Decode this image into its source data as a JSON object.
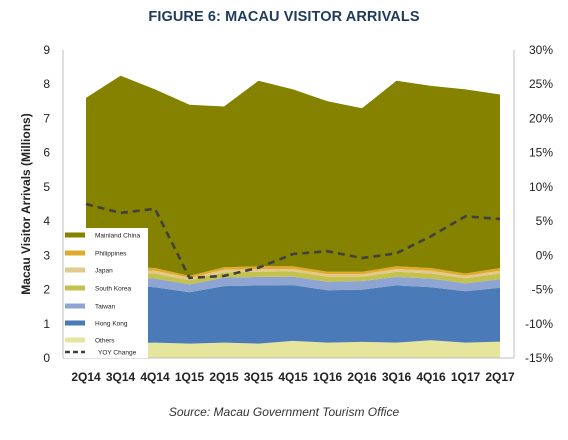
{
  "chart_data": {
    "type": "area",
    "title": "FIGURE 6: MACAU VISITOR ARRIVALS",
    "source": "Source: Macau Government Tourism Office",
    "ylabel": "Macau Visitor Arrivals (Millions)",
    "ylim": [
      0,
      9
    ],
    "yticks": [
      "0",
      "1",
      "2",
      "3",
      "4",
      "5",
      "6",
      "7",
      "8",
      "9"
    ],
    "y2lim": [
      -15,
      30
    ],
    "y2ticks": [
      "-15%",
      "-10%",
      "-5%",
      "0%",
      "5%",
      "10%",
      "15%",
      "20%",
      "25%",
      "30%"
    ],
    "categories": [
      "2Q14",
      "3Q14",
      "4Q14",
      "1Q15",
      "2Q15",
      "3Q15",
      "4Q15",
      "1Q16",
      "2Q16",
      "3Q16",
      "4Q16",
      "1Q17",
      "2Q17"
    ],
    "stacked": true,
    "legend_position": "bottom-left",
    "series": [
      {
        "name": "Others",
        "color": "#e6e59d",
        "values": [
          0.5,
          0.42,
          0.45,
          0.42,
          0.45,
          0.42,
          0.5,
          0.45,
          0.47,
          0.45,
          0.52,
          0.45,
          0.48
        ]
      },
      {
        "name": "Hong Kong",
        "color": "#4a7ab8",
        "values": [
          1.6,
          1.7,
          1.62,
          1.5,
          1.65,
          1.7,
          1.63,
          1.53,
          1.53,
          1.67,
          1.55,
          1.5,
          1.57
        ]
      },
      {
        "name": "Taiwan",
        "color": "#8ea4d2",
        "values": [
          0.25,
          0.25,
          0.25,
          0.23,
          0.25,
          0.25,
          0.25,
          0.25,
          0.25,
          0.25,
          0.25,
          0.23,
          0.25
        ]
      },
      {
        "name": "South Korea",
        "color": "#c4c24d",
        "values": [
          0.15,
          0.15,
          0.15,
          0.12,
          0.15,
          0.15,
          0.15,
          0.15,
          0.13,
          0.15,
          0.15,
          0.15,
          0.17
        ]
      },
      {
        "name": "Japan",
        "color": "#e2c98d",
        "values": [
          0.08,
          0.08,
          0.08,
          0.07,
          0.08,
          0.08,
          0.07,
          0.07,
          0.07,
          0.08,
          0.08,
          0.07,
          0.08
        ]
      },
      {
        "name": "Philippines",
        "color": "#e0aa2c",
        "values": [
          0.07,
          0.07,
          0.08,
          0.06,
          0.07,
          0.08,
          0.08,
          0.07,
          0.07,
          0.08,
          0.08,
          0.07,
          0.08
        ]
      },
      {
        "name": "Mainland China",
        "color": "#858200",
        "values": [
          4.95,
          5.58,
          5.22,
          5.0,
          4.7,
          5.42,
          5.17,
          4.98,
          4.78,
          5.42,
          5.32,
          5.38,
          5.07
        ]
      }
    ],
    "line_series": {
      "name": "YOY Change",
      "axis": "right",
      "color": "#404040",
      "style": "dashed",
      "values": [
        7.5,
        6.2,
        6.8,
        -3.3,
        -3.0,
        -1.8,
        0.2,
        0.6,
        -0.4,
        0.3,
        2.8,
        5.7,
        5.3
      ]
    }
  }
}
